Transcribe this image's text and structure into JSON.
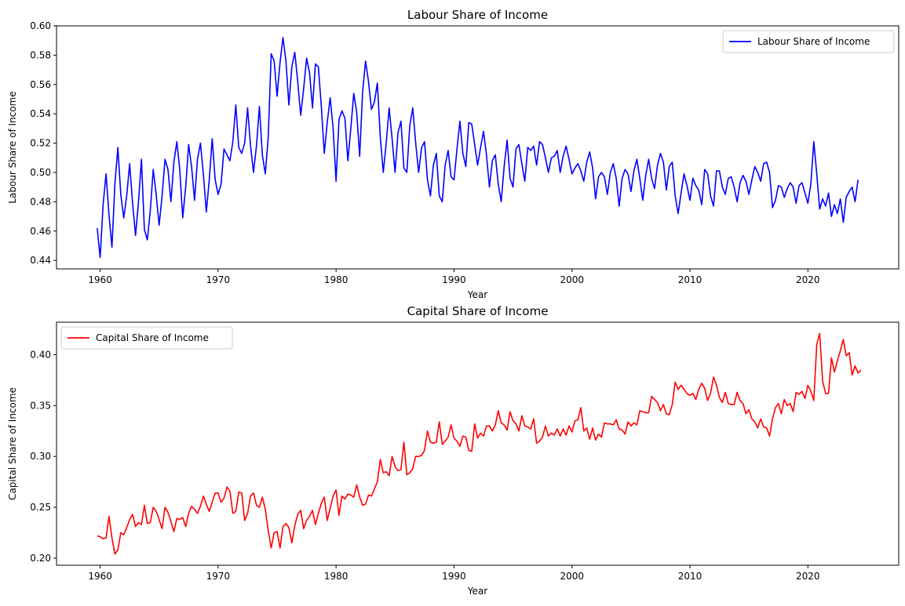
{
  "chart_data": [
    {
      "type": "line",
      "title": "Labour Share of Income",
      "xlabel": "Year",
      "ylabel": "Labour Share of Income",
      "xlim": [
        1956.3,
        2027.7
      ],
      "ylim": [
        0.4342,
        0.6
      ],
      "x_ticks": [
        1960,
        1970,
        1980,
        1990,
        2000,
        2010,
        2020
      ],
      "y_ticks": [
        0.44,
        0.46,
        0.48,
        0.5,
        0.52,
        0.54,
        0.56,
        0.58,
        0.6
      ],
      "y_tick_labels": [
        "0.44",
        "0.46",
        "0.48",
        "0.50",
        "0.52",
        "0.54",
        "0.56",
        "0.58",
        "0.60"
      ],
      "legend_position": "upper-right",
      "grid": false,
      "series": [
        {
          "name": "Labour Share of Income",
          "color": "#0000ff",
          "x_start": 1959.75,
          "x_step": 0.25,
          "values": [
            0.462,
            0.442,
            0.478,
            0.499,
            0.471,
            0.449,
            0.492,
            0.517,
            0.485,
            0.469,
            0.484,
            0.506,
            0.479,
            0.457,
            0.48,
            0.509,
            0.461,
            0.454,
            0.474,
            0.502,
            0.485,
            0.464,
            0.484,
            0.509,
            0.502,
            0.48,
            0.507,
            0.521,
            0.502,
            0.469,
            0.49,
            0.519,
            0.504,
            0.481,
            0.509,
            0.52,
            0.499,
            0.473,
            0.495,
            0.523,
            0.495,
            0.485,
            0.492,
            0.516,
            0.512,
            0.508,
            0.521,
            0.546,
            0.517,
            0.513,
            0.52,
            0.544,
            0.518,
            0.5,
            0.518,
            0.545,
            0.512,
            0.499,
            0.524,
            0.581,
            0.576,
            0.552,
            0.575,
            0.592,
            0.576,
            0.546,
            0.572,
            0.582,
            0.562,
            0.539,
            0.557,
            0.578,
            0.568,
            0.544,
            0.574,
            0.572,
            0.545,
            0.513,
            0.534,
            0.551,
            0.53,
            0.494,
            0.536,
            0.542,
            0.537,
            0.508,
            0.53,
            0.554,
            0.541,
            0.511,
            0.555,
            0.576,
            0.562,
            0.543,
            0.548,
            0.561,
            0.524,
            0.5,
            0.52,
            0.544,
            0.523,
            0.5,
            0.527,
            0.535,
            0.503,
            0.5,
            0.532,
            0.544,
            0.52,
            0.5,
            0.517,
            0.521,
            0.495,
            0.484,
            0.505,
            0.513,
            0.484,
            0.48,
            0.505,
            0.515,
            0.497,
            0.495,
            0.516,
            0.535,
            0.513,
            0.504,
            0.534,
            0.533,
            0.519,
            0.505,
            0.517,
            0.528,
            0.512,
            0.49,
            0.508,
            0.512,
            0.492,
            0.48,
            0.504,
            0.522,
            0.496,
            0.49,
            0.516,
            0.519,
            0.506,
            0.494,
            0.517,
            0.515,
            0.518,
            0.505,
            0.521,
            0.519,
            0.51,
            0.5,
            0.51,
            0.511,
            0.515,
            0.5,
            0.511,
            0.518,
            0.509,
            0.499,
            0.503,
            0.506,
            0.501,
            0.494,
            0.507,
            0.514,
            0.503,
            0.482,
            0.497,
            0.5,
            0.497,
            0.485,
            0.5,
            0.506,
            0.496,
            0.477,
            0.496,
            0.502,
            0.499,
            0.487,
            0.501,
            0.509,
            0.496,
            0.481,
            0.498,
            0.509,
            0.496,
            0.489,
            0.505,
            0.513,
            0.507,
            0.488,
            0.504,
            0.507,
            0.484,
            0.472,
            0.486,
            0.499,
            0.491,
            0.481,
            0.496,
            0.491,
            0.488,
            0.478,
            0.502,
            0.499,
            0.484,
            0.477,
            0.501,
            0.501,
            0.49,
            0.485,
            0.496,
            0.497,
            0.49,
            0.48,
            0.493,
            0.498,
            0.494,
            0.485,
            0.495,
            0.504,
            0.5,
            0.494,
            0.506,
            0.507,
            0.5,
            0.476,
            0.481,
            0.491,
            0.49,
            0.483,
            0.489,
            0.493,
            0.49,
            0.479,
            0.491,
            0.493,
            0.486,
            0.479,
            0.492,
            0.521,
            0.499,
            0.475,
            0.482,
            0.477,
            0.486,
            0.47,
            0.478,
            0.472,
            0.482,
            0.466,
            0.483,
            0.487,
            0.49,
            0.48,
            0.495
          ]
        }
      ]
    },
    {
      "type": "line",
      "title": "Capital Share of Income",
      "xlabel": "Year",
      "ylabel": "Capital Share of Income",
      "xlim": [
        1956.3,
        2027.7
      ],
      "ylim": [
        0.193,
        0.432
      ],
      "x_ticks": [
        1960,
        1970,
        1980,
        1990,
        2000,
        2010,
        2020
      ],
      "y_ticks": [
        0.2,
        0.25,
        0.3,
        0.35,
        0.4
      ],
      "y_tick_labels": [
        "0.20",
        "0.25",
        "0.30",
        "0.35",
        "0.40"
      ],
      "legend_position": "upper-left",
      "grid": false,
      "series": [
        {
          "name": "Capital Share of Income",
          "color": "#ff0000",
          "x_start": 1959.75,
          "x_step": 0.25,
          "values": [
            0.222,
            0.221,
            0.219,
            0.22,
            0.241,
            0.22,
            0.204,
            0.208,
            0.225,
            0.223,
            0.23,
            0.238,
            0.243,
            0.231,
            0.235,
            0.233,
            0.252,
            0.234,
            0.235,
            0.25,
            0.246,
            0.238,
            0.229,
            0.25,
            0.245,
            0.236,
            0.226,
            0.239,
            0.238,
            0.24,
            0.231,
            0.244,
            0.251,
            0.248,
            0.244,
            0.251,
            0.261,
            0.253,
            0.246,
            0.255,
            0.264,
            0.264,
            0.255,
            0.259,
            0.27,
            0.266,
            0.244,
            0.246,
            0.265,
            0.264,
            0.237,
            0.244,
            0.261,
            0.264,
            0.252,
            0.25,
            0.26,
            0.248,
            0.227,
            0.21,
            0.225,
            0.226,
            0.21,
            0.231,
            0.234,
            0.23,
            0.215,
            0.232,
            0.243,
            0.247,
            0.229,
            0.237,
            0.241,
            0.247,
            0.233,
            0.244,
            0.254,
            0.26,
            0.237,
            0.249,
            0.261,
            0.267,
            0.242,
            0.261,
            0.258,
            0.263,
            0.262,
            0.26,
            0.272,
            0.26,
            0.252,
            0.253,
            0.262,
            0.261,
            0.268,
            0.275,
            0.297,
            0.284,
            0.285,
            0.281,
            0.3,
            0.29,
            0.286,
            0.287,
            0.314,
            0.282,
            0.284,
            0.288,
            0.3,
            0.3,
            0.301,
            0.306,
            0.325,
            0.314,
            0.313,
            0.314,
            0.334,
            0.312,
            0.315,
            0.319,
            0.331,
            0.318,
            0.315,
            0.31,
            0.32,
            0.319,
            0.306,
            0.305,
            0.332,
            0.318,
            0.323,
            0.32,
            0.33,
            0.33,
            0.325,
            0.331,
            0.345,
            0.333,
            0.331,
            0.326,
            0.344,
            0.335,
            0.332,
            0.325,
            0.34,
            0.33,
            0.329,
            0.327,
            0.337,
            0.313,
            0.315,
            0.319,
            0.33,
            0.32,
            0.323,
            0.321,
            0.327,
            0.32,
            0.327,
            0.321,
            0.33,
            0.324,
            0.335,
            0.336,
            0.348,
            0.325,
            0.328,
            0.317,
            0.328,
            0.316,
            0.322,
            0.319,
            0.333,
            0.332,
            0.332,
            0.331,
            0.336,
            0.327,
            0.326,
            0.322,
            0.334,
            0.33,
            0.333,
            0.331,
            0.345,
            0.344,
            0.343,
            0.343,
            0.359,
            0.356,
            0.353,
            0.345,
            0.351,
            0.342,
            0.341,
            0.351,
            0.373,
            0.366,
            0.37,
            0.366,
            0.362,
            0.36,
            0.362,
            0.356,
            0.366,
            0.372,
            0.367,
            0.355,
            0.362,
            0.378,
            0.37,
            0.358,
            0.353,
            0.363,
            0.352,
            0.351,
            0.351,
            0.363,
            0.355,
            0.352,
            0.342,
            0.346,
            0.337,
            0.334,
            0.328,
            0.337,
            0.329,
            0.328,
            0.32,
            0.337,
            0.348,
            0.352,
            0.342,
            0.356,
            0.35,
            0.352,
            0.344,
            0.363,
            0.361,
            0.364,
            0.357,
            0.37,
            0.364,
            0.355,
            0.41,
            0.421,
            0.374,
            0.362,
            0.362,
            0.397,
            0.383,
            0.394,
            0.404,
            0.415,
            0.399,
            0.402,
            0.38,
            0.389,
            0.382,
            0.385
          ]
        }
      ]
    }
  ]
}
